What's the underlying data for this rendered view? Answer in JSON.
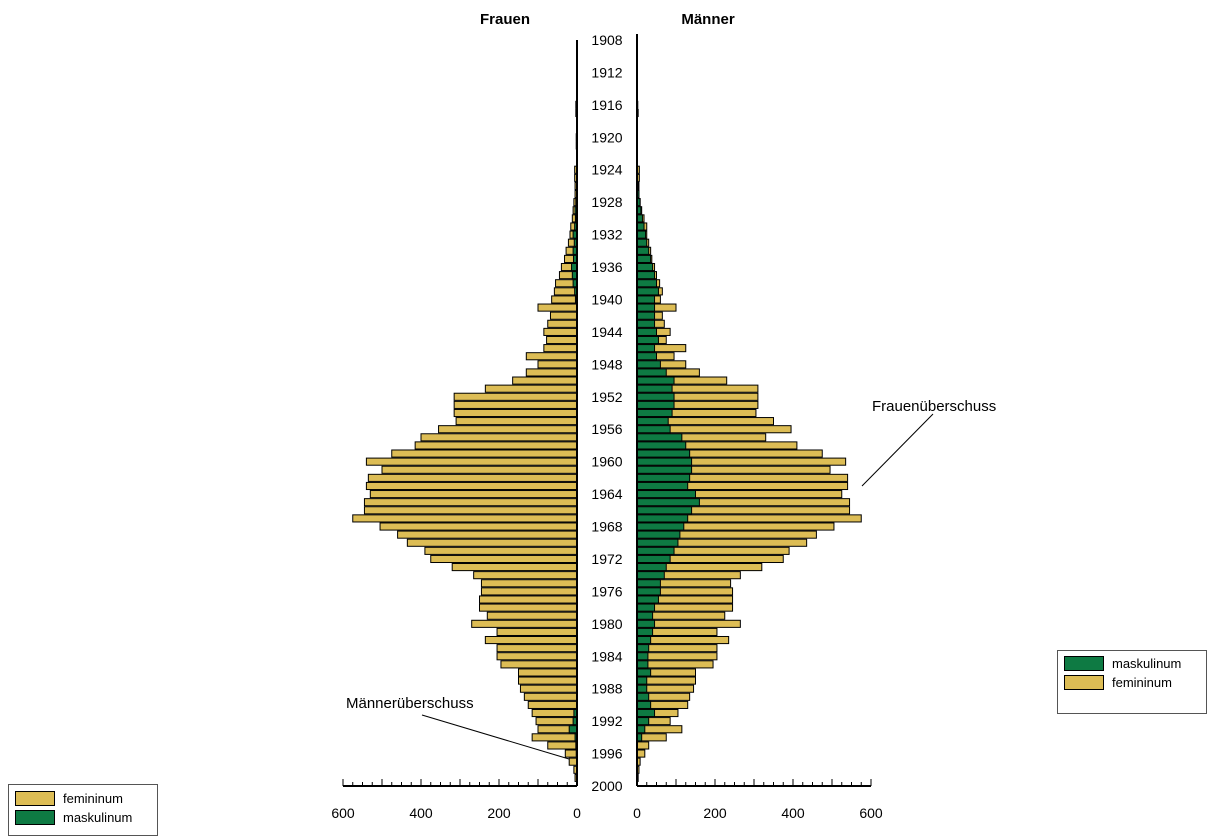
{
  "chart_data": {
    "type": "bar",
    "subtype": "population-pyramid",
    "left_title": "Frauen",
    "right_title": "Männer",
    "x_ticks": [
      0,
      200,
      400,
      600
    ],
    "xlim": [
      0,
      600
    ],
    "year_labels": [
      "1908",
      "1912",
      "1916",
      "1920",
      "1924",
      "1928",
      "1932",
      "1936",
      "1940",
      "1944",
      "1948",
      "1952",
      "1956",
      "1960",
      "1964",
      "1968",
      "1972",
      "1976",
      "1980",
      "1984",
      "1988",
      "1992",
      "1996",
      "2000"
    ],
    "colors": {
      "feminine": "#DDBD55",
      "masculine": "#0E7A43"
    },
    "annotations": [
      "Frauenüberschuss",
      "Männerüberschuss"
    ],
    "legend_right": [
      {
        "label": "maskulinum",
        "color": "#0E7A43"
      },
      {
        "label": "femininum",
        "color": "#DDBD55"
      }
    ],
    "legend_left": [
      {
        "label": "femininum",
        "color": "#DDBD55"
      },
      {
        "label": "maskulinum",
        "color": "#0E7A43"
      }
    ],
    "series": [
      {
        "name": "Frauen femininum",
        "years": [
          1907,
          1908,
          1909,
          1910,
          1911,
          1912,
          1913,
          1914,
          1915,
          1916,
          1917,
          1918,
          1919,
          1920,
          1921,
          1922,
          1923,
          1924,
          1925,
          1926,
          1927,
          1928,
          1929,
          1930,
          1931,
          1932,
          1933,
          1934,
          1935,
          1936,
          1937,
          1938,
          1939,
          1940,
          1941,
          1942,
          1943,
          1944,
          1945,
          1946,
          1947,
          1948,
          1949,
          1950,
          1951,
          1952,
          1953,
          1954,
          1955,
          1956,
          1957,
          1958,
          1959,
          1960,
          1961,
          1962,
          1963,
          1964,
          1965,
          1966,
          1967,
          1968,
          1969,
          1970,
          1971,
          1972,
          1973,
          1974,
          1975,
          1976,
          1977,
          1978,
          1979,
          1980,
          1981,
          1982,
          1983,
          1984,
          1985,
          1986,
          1987,
          1988,
          1989,
          1990,
          1991,
          1992,
          1993,
          1994,
          1995,
          1996,
          1997,
          1998,
          1999
        ],
        "values": [
          0,
          0,
          0,
          0,
          0,
          0,
          0,
          0,
          0,
          3,
          3,
          0,
          0,
          2,
          2,
          0,
          0,
          6,
          6,
          5,
          5,
          8,
          10,
          12,
          16,
          18,
          22,
          28,
          32,
          40,
          45,
          55,
          58,
          65,
          100,
          68,
          75,
          85,
          78,
          85,
          130,
          100,
          130,
          165,
          235,
          315,
          315,
          315,
          310,
          355,
          400,
          415,
          475,
          540,
          500,
          535,
          540,
          530,
          545,
          545,
          575,
          505,
          460,
          435,
          390,
          375,
          320,
          265,
          245,
          245,
          250,
          250,
          230,
          270,
          205,
          235,
          205,
          205,
          195,
          150,
          150,
          145,
          135,
          125,
          115,
          105,
          100,
          115,
          75,
          30,
          20,
          8,
          5
        ]
      },
      {
        "name": "Frauen maskulinum",
        "years": [
          1928,
          1929,
          1930,
          1931,
          1932,
          1933,
          1934,
          1935,
          1936,
          1937,
          1938,
          1939,
          1940,
          1991,
          1992,
          1993,
          1994,
          1995,
          1996,
          1997,
          1998,
          1999
        ],
        "values": [
          3,
          5,
          4,
          6,
          10,
          7,
          10,
          9,
          14,
          12,
          10,
          6,
          4,
          8,
          10,
          20,
          5,
          3,
          2,
          1,
          1,
          1
        ]
      },
      {
        "name": "Männer femininum",
        "years": [
          1907,
          1908,
          1909,
          1910,
          1911,
          1912,
          1913,
          1914,
          1915,
          1916,
          1917,
          1918,
          1919,
          1920,
          1921,
          1922,
          1923,
          1924,
          1925,
          1926,
          1927,
          1928,
          1929,
          1930,
          1931,
          1932,
          1933,
          1934,
          1935,
          1936,
          1937,
          1938,
          1939,
          1940,
          1941,
          1942,
          1943,
          1944,
          1945,
          1946,
          1947,
          1948,
          1949,
          1950,
          1951,
          1952,
          1953,
          1954,
          1955,
          1956,
          1957,
          1958,
          1959,
          1960,
          1961,
          1962,
          1963,
          1964,
          1965,
          1966,
          1967,
          1968,
          1969,
          1970,
          1971,
          1972,
          1973,
          1974,
          1975,
          1976,
          1977,
          1978,
          1979,
          1980,
          1981,
          1982,
          1983,
          1984,
          1985,
          1986,
          1987,
          1988,
          1989,
          1990,
          1991,
          1992,
          1993,
          1994,
          1995,
          1996,
          1997,
          1998,
          1999
        ],
        "values": [
          0,
          0,
          0,
          0,
          0,
          0,
          0,
          0,
          0,
          2,
          3,
          0,
          0,
          0,
          0,
          0,
          0,
          6,
          6,
          5,
          5,
          8,
          12,
          18,
          25,
          25,
          30,
          35,
          38,
          45,
          50,
          58,
          65,
          60,
          100,
          65,
          70,
          85,
          75,
          125,
          95,
          125,
          160,
          230,
          310,
          310,
          310,
          305,
          350,
          395,
          330,
          410,
          475,
          535,
          495,
          540,
          540,
          525,
          545,
          545,
          575,
          505,
          460,
          435,
          390,
          375,
          320,
          265,
          240,
          245,
          245,
          245,
          225,
          265,
          205,
          235,
          205,
          205,
          195,
          150,
          150,
          145,
          135,
          130,
          105,
          85,
          115,
          75,
          30,
          20,
          8,
          5,
          3
        ]
      },
      {
        "name": "Männer maskulinum",
        "years": [
          1926,
          1927,
          1928,
          1929,
          1930,
          1931,
          1932,
          1933,
          1934,
          1935,
          1936,
          1937,
          1938,
          1939,
          1940,
          1941,
          1942,
          1943,
          1944,
          1945,
          1946,
          1947,
          1948,
          1949,
          1950,
          1951,
          1952,
          1953,
          1954,
          1955,
          1956,
          1957,
          1958,
          1959,
          1960,
          1961,
          1962,
          1963,
          1964,
          1965,
          1966,
          1967,
          1968,
          1969,
          1970,
          1971,
          1972,
          1973,
          1974,
          1975,
          1976,
          1977,
          1978,
          1979,
          1980,
          1981,
          1982,
          1983,
          1984,
          1985,
          1986,
          1987,
          1988,
          1989,
          1990,
          1991,
          1992,
          1993,
          1994
        ],
        "values": [
          3,
          5,
          8,
          10,
          14,
          18,
          22,
          25,
          30,
          35,
          40,
          45,
          50,
          55,
          45,
          45,
          45,
          45,
          50,
          55,
          45,
          50,
          60,
          75,
          95,
          90,
          95,
          95,
          90,
          80,
          85,
          115,
          125,
          135,
          140,
          140,
          135,
          130,
          150,
          160,
          140,
          130,
          120,
          110,
          105,
          95,
          85,
          75,
          70,
          60,
          60,
          55,
          45,
          40,
          45,
          40,
          35,
          30,
          28,
          28,
          35,
          25,
          25,
          30,
          35,
          45,
          30,
          20,
          12
        ]
      }
    ]
  }
}
